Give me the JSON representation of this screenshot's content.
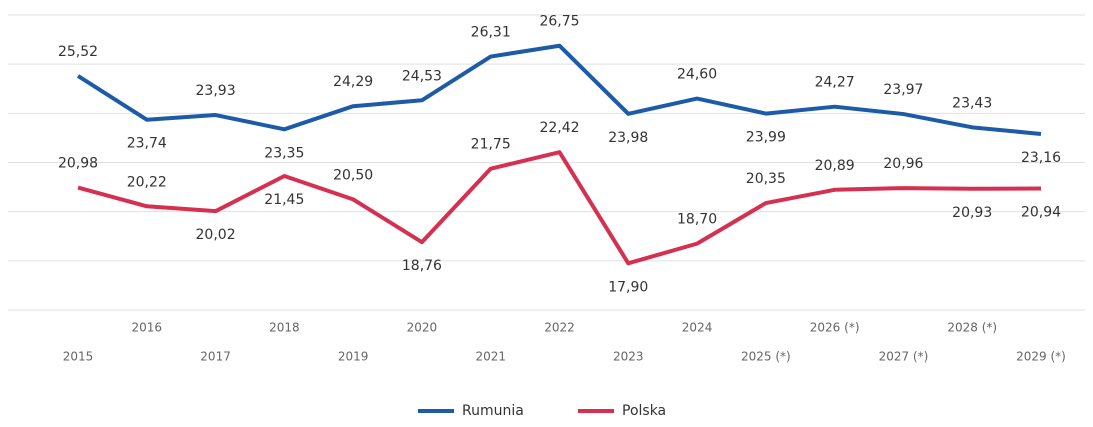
{
  "chart_data": {
    "type": "line",
    "categories": [
      "2015",
      "2016",
      "2017",
      "2018",
      "2019",
      "2020",
      "2021",
      "2022",
      "2023",
      "2024",
      "2025 (*)",
      "2026 (*)",
      "2027 (*)",
      "2028 (*)",
      "2029 (*)"
    ],
    "series": [
      {
        "name": "Rumunia",
        "color": "#1c5ba8",
        "values": [
          25.52,
          23.74,
          23.93,
          23.35,
          24.29,
          24.53,
          26.31,
          26.75,
          23.98,
          24.6,
          23.99,
          24.27,
          23.97,
          23.43,
          23.16
        ],
        "value_labels": [
          "25,52",
          "23,74",
          "23,93",
          "23,35",
          "24,29",
          "24,53",
          "26,31",
          "26,75",
          "23,98",
          "24,60",
          "23,99",
          "24,27",
          "23,97",
          "23,43",
          "23,16"
        ]
      },
      {
        "name": "Polska",
        "color": "#d63050",
        "values": [
          20.98,
          20.22,
          20.02,
          21.45,
          20.5,
          18.76,
          21.75,
          22.42,
          17.9,
          18.7,
          20.35,
          20.89,
          20.96,
          20.93,
          20.94
        ],
        "value_labels": [
          "20,98",
          "20,22",
          "20,02",
          "21,45",
          "20,50",
          "18,76",
          "21,75",
          "22,42",
          "17,90",
          "18,70",
          "20,35",
          "20,89",
          "20,96",
          "20,93",
          "20,94"
        ]
      }
    ],
    "ylim": [
      16,
      28
    ],
    "yticks": [
      16,
      18,
      20,
      22,
      24,
      26,
      28
    ],
    "grid": true,
    "legend": "bottom"
  }
}
